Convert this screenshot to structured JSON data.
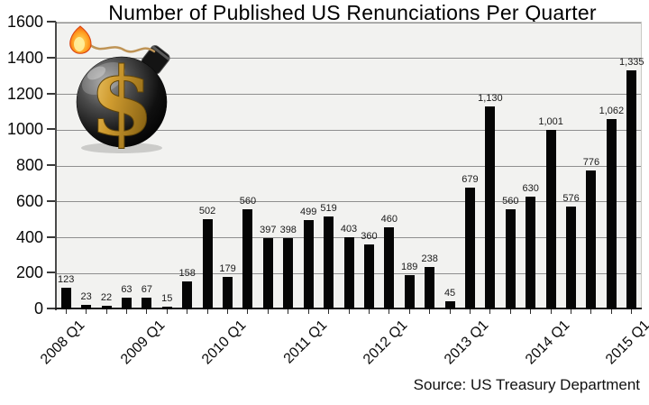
{
  "title": "Number of Published US Renunciations Per Quarter",
  "source_label": "Source: US Treasury Department",
  "icons": {
    "money_bomb": "black-bomb-with-gold-dollar-sign-and-lit-fuse"
  },
  "colors": {
    "bar": "#050505",
    "plot_background": "#f2f2f0",
    "gridline": "#8f8f8f",
    "axis": "#1c1c1c",
    "fuse_tan": "#bf9456",
    "flame_orange": "#ff9d1f",
    "dollar_gold": "#cf9b2f"
  },
  "chart_data": {
    "type": "bar",
    "title": "Number of Published US Renunciations Per Quarter",
    "xlabel": "",
    "ylabel": "",
    "ylim": [
      0,
      1600
    ],
    "yticks": [
      0,
      200,
      400,
      600,
      800,
      1000,
      1200,
      1400,
      1600
    ],
    "grid": "horizontal",
    "legend": "none",
    "bar_color": "#050505",
    "categories": [
      "2008 Q1",
      "2008 Q2",
      "2008 Q3",
      "2008 Q4",
      "2009 Q1",
      "2009 Q2",
      "2009 Q3",
      "2009 Q4",
      "2010 Q1",
      "2010 Q2",
      "2010 Q3",
      "2010 Q4",
      "2011 Q1",
      "2011 Q2",
      "2011 Q3",
      "2011 Q4",
      "2012 Q1",
      "2012 Q2",
      "2012 Q3",
      "2012 Q4",
      "2013 Q1",
      "2013 Q2",
      "2013 Q3",
      "2013 Q4",
      "2014 Q1",
      "2014 Q2",
      "2014 Q3",
      "2014 Q4",
      "2015 Q1"
    ],
    "values": [
      123,
      23,
      22,
      63,
      67,
      15,
      158,
      502,
      179,
      560,
      397,
      398,
      499,
      519,
      403,
      360,
      460,
      189,
      238,
      45,
      679,
      1130,
      560,
      630,
      1001,
      576,
      776,
      1062,
      1335
    ],
    "value_labels": [
      "123",
      "23",
      "22",
      "63",
      "67",
      "15",
      "158",
      "502",
      "179",
      "560",
      "397",
      "398",
      "499",
      "519",
      "403",
      "360",
      "460",
      "189",
      "238",
      "45",
      "679",
      "1,130",
      "560",
      "630",
      "1,001",
      "576",
      "776",
      "1,062",
      "1,335"
    ],
    "xtick_indices": [
      0,
      4,
      8,
      12,
      16,
      20,
      24,
      28
    ],
    "xtick_labels": [
      "2008 Q1",
      "2009 Q1",
      "2010 Q1",
      "2011 Q1",
      "2012 Q1",
      "2013 Q1",
      "2014 Q1",
      "2015 Q1"
    ],
    "source": "Source: US Treasury Department"
  }
}
